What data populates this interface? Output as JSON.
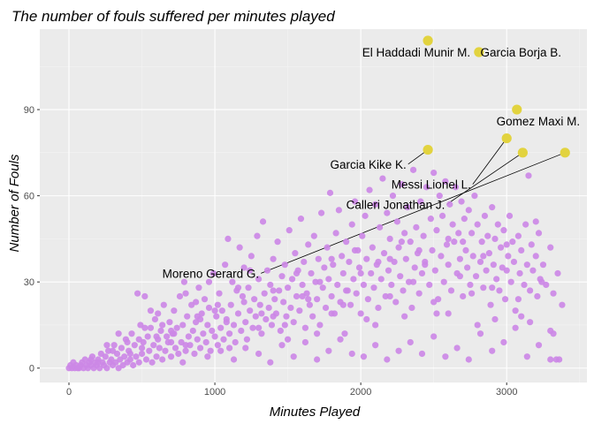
{
  "colors": {
    "panel": "#ebebeb",
    "grid_major": "#ffffff",
    "grid_minor": "#f4f4f4",
    "others": "#cc88e6",
    "highlighted": "#e2d33f",
    "leader": "#000000"
  },
  "chart_data": {
    "type": "scatter",
    "title": "The number of fouls suffered per minutes played",
    "xlabel": "Minutes Played",
    "ylabel": "Number of Fouls",
    "xlim": [
      -200,
      3550
    ],
    "ylim": [
      -5,
      118
    ],
    "xticks": [
      0,
      1000,
      2000,
      3000
    ],
    "yticks": [
      0,
      30,
      60,
      90
    ],
    "grid": true,
    "highlighted": [
      {
        "name": "El Haddadi Munir M.",
        "x": 2460,
        "y": 114,
        "label_x": 2010,
        "label_y": 110,
        "anchor": "start"
      },
      {
        "name": "Garcia Borja  B.",
        "x": 2810,
        "y": 110,
        "label_x": 2820,
        "label_y": 110,
        "anchor": "start"
      },
      {
        "name": "Gomez Maxi M.",
        "x": 3070,
        "y": 90,
        "label_x": 2930,
        "label_y": 86,
        "anchor": "start"
      },
      {
        "name": "Garcia Kike  K.",
        "x": 2460,
        "y": 76,
        "label_x": 1790,
        "label_y": 71,
        "anchor": "start",
        "leader": true
      },
      {
        "name": "Messi Lionel  L.",
        "x": 3000,
        "y": 80,
        "label_x": 2210,
        "label_y": 64,
        "anchor": "start",
        "leader": true
      },
      {
        "name": "Calleri Jonathan  J.",
        "x": 3110,
        "y": 75,
        "label_x": 1900,
        "label_y": 57,
        "anchor": "start",
        "leader": true
      },
      {
        "name": "Moreno Gerard  G.",
        "x": 3400,
        "y": 75,
        "label_x": 640,
        "label_y": 33,
        "anchor": "start",
        "leader": true
      }
    ],
    "points": [
      [
        0,
        0
      ],
      [
        10,
        1
      ],
      [
        20,
        0
      ],
      [
        30,
        2
      ],
      [
        40,
        0
      ],
      [
        50,
        1
      ],
      [
        60,
        0
      ],
      [
        70,
        0
      ],
      [
        80,
        1
      ],
      [
        90,
        2
      ],
      [
        100,
        0
      ],
      [
        110,
        3
      ],
      [
        120,
        1
      ],
      [
        130,
        0
      ],
      [
        140,
        2
      ],
      [
        150,
        1
      ],
      [
        160,
        4
      ],
      [
        170,
        0
      ],
      [
        180,
        2
      ],
      [
        190,
        1
      ],
      [
        200,
        3
      ],
      [
        210,
        0
      ],
      [
        220,
        5
      ],
      [
        230,
        2
      ],
      [
        240,
        1
      ],
      [
        250,
        4
      ],
      [
        260,
        0
      ],
      [
        270,
        6
      ],
      [
        280,
        2
      ],
      [
        290,
        3
      ],
      [
        300,
        1
      ],
      [
        310,
        8
      ],
      [
        320,
        2
      ],
      [
        330,
        5
      ],
      [
        340,
        0
      ],
      [
        350,
        3
      ],
      [
        360,
        7
      ],
      [
        370,
        1
      ],
      [
        380,
        4
      ],
      [
        390,
        10
      ],
      [
        400,
        2
      ],
      [
        410,
        6
      ],
      [
        420,
        3
      ],
      [
        430,
        12
      ],
      [
        440,
        1
      ],
      [
        450,
        8
      ],
      [
        460,
        4
      ],
      [
        470,
        26
      ],
      [
        480,
        2
      ],
      [
        490,
        15
      ],
      [
        500,
        5
      ],
      [
        510,
        9
      ],
      [
        520,
        25
      ],
      [
        530,
        3
      ],
      [
        540,
        11
      ],
      [
        550,
        6
      ],
      [
        560,
        14
      ],
      [
        570,
        2
      ],
      [
        580,
        8
      ],
      [
        590,
        17
      ],
      [
        600,
        4
      ],
      [
        610,
        10
      ],
      [
        620,
        7
      ],
      [
        630,
        13
      ],
      [
        640,
        3
      ],
      [
        650,
        22
      ],
      [
        660,
        6
      ],
      [
        670,
        11
      ],
      [
        680,
        9
      ],
      [
        690,
        16
      ],
      [
        700,
        4
      ],
      [
        710,
        12
      ],
      [
        720,
        20
      ],
      [
        730,
        7
      ],
      [
        740,
        14
      ],
      [
        750,
        5
      ],
      [
        760,
        25
      ],
      [
        770,
        9
      ],
      [
        780,
        15
      ],
      [
        790,
        30
      ],
      [
        800,
        6
      ],
      [
        810,
        18
      ],
      [
        820,
        11
      ],
      [
        830,
        8
      ],
      [
        840,
        22
      ],
      [
        850,
        13
      ],
      [
        860,
        5
      ],
      [
        870,
        16
      ],
      [
        880,
        10
      ],
      [
        890,
        28
      ],
      [
        900,
        7
      ],
      [
        910,
        19
      ],
      [
        920,
        12
      ],
      [
        930,
        24
      ],
      [
        940,
        9
      ],
      [
        950,
        15
      ],
      [
        960,
        21
      ],
      [
        970,
        6
      ],
      [
        980,
        13
      ],
      [
        990,
        33
      ],
      [
        1000,
        11
      ],
      [
        1010,
        18
      ],
      [
        1020,
        8
      ],
      [
        1030,
        26
      ],
      [
        1040,
        14
      ],
      [
        1050,
        20
      ],
      [
        1060,
        10
      ],
      [
        1070,
        36
      ],
      [
        1080,
        17
      ],
      [
        1090,
        45
      ],
      [
        1100,
        12
      ],
      [
        1110,
        22
      ],
      [
        1120,
        30
      ],
      [
        1130,
        15
      ],
      [
        1140,
        9
      ],
      [
        1150,
        27
      ],
      [
        1160,
        19
      ],
      [
        1170,
        42
      ],
      [
        1180,
        13
      ],
      [
        1190,
        25
      ],
      [
        1200,
        35
      ],
      [
        1210,
        16
      ],
      [
        1220,
        10
      ],
      [
        1230,
        28
      ],
      [
        1240,
        20
      ],
      [
        1250,
        39
      ],
      [
        1260,
        14
      ],
      [
        1270,
        24
      ],
      [
        1280,
        18
      ],
      [
        1290,
        46
      ],
      [
        1300,
        31
      ],
      [
        1310,
        22
      ],
      [
        1320,
        12
      ],
      [
        1330,
        51
      ],
      [
        1340,
        26
      ],
      [
        1350,
        17
      ],
      [
        1360,
        34
      ],
      [
        1370,
        21
      ],
      [
        1380,
        29
      ],
      [
        1390,
        15
      ],
      [
        1400,
        38
      ],
      [
        1410,
        24
      ],
      [
        1420,
        19
      ],
      [
        1430,
        44
      ],
      [
        1440,
        27
      ],
      [
        1450,
        13
      ],
      [
        1460,
        32
      ],
      [
        1470,
        23
      ],
      [
        1480,
        36
      ],
      [
        1490,
        18
      ],
      [
        1500,
        28
      ],
      [
        1510,
        48
      ],
      [
        1520,
        21
      ],
      [
        1530,
        31
      ],
      [
        1540,
        16
      ],
      [
        1550,
        40
      ],
      [
        1560,
        25
      ],
      [
        1570,
        34
      ],
      [
        1580,
        20
      ],
      [
        1590,
        52
      ],
      [
        1600,
        29
      ],
      [
        1610,
        37
      ],
      [
        1620,
        14
      ],
      [
        1630,
        26
      ],
      [
        1640,
        43
      ],
      [
        1650,
        22
      ],
      [
        1660,
        33
      ],
      [
        1670,
        18
      ],
      [
        1680,
        46
      ],
      [
        1690,
        30
      ],
      [
        1700,
        24
      ],
      [
        1710,
        38
      ],
      [
        1720,
        15
      ],
      [
        1730,
        54
      ],
      [
        1740,
        28
      ],
      [
        1750,
        35
      ],
      [
        1760,
        21
      ],
      [
        1770,
        42
      ],
      [
        1780,
        31
      ],
      [
        1790,
        61
      ],
      [
        1800,
        25
      ],
      [
        1810,
        36
      ],
      [
        1820,
        19
      ],
      [
        1830,
        47
      ],
      [
        1840,
        29
      ],
      [
        1850,
        55
      ],
      [
        1860,
        23
      ],
      [
        1870,
        39
      ],
      [
        1880,
        33
      ],
      [
        1890,
        12
      ],
      [
        1900,
        44
      ],
      [
        1910,
        27
      ],
      [
        1920,
        37
      ],
      [
        1930,
        22
      ],
      [
        1940,
        50
      ],
      [
        1950,
        31
      ],
      [
        1960,
        58
      ],
      [
        1970,
        26
      ],
      [
        1980,
        41
      ],
      [
        1990,
        35
      ],
      [
        2000,
        19
      ],
      [
        2010,
        46
      ],
      [
        2020,
        29
      ],
      [
        2030,
        53
      ],
      [
        2040,
        38
      ],
      [
        2050,
        24
      ],
      [
        2060,
        62
      ],
      [
        2070,
        33
      ],
      [
        2080,
        42
      ],
      [
        2090,
        28
      ],
      [
        2100,
        57
      ],
      [
        2110,
        36
      ],
      [
        2120,
        21
      ],
      [
        2130,
        49
      ],
      [
        2140,
        31
      ],
      [
        2150,
        66
      ],
      [
        2160,
        40
      ],
      [
        2170,
        25
      ],
      [
        2180,
        54
      ],
      [
        2190,
        34
      ],
      [
        2200,
        45
      ],
      [
        2210,
        29
      ],
      [
        2220,
        60
      ],
      [
        2230,
        37
      ],
      [
        2240,
        23
      ],
      [
        2250,
        51
      ],
      [
        2260,
        42
      ],
      [
        2270,
        32
      ],
      [
        2280,
        64
      ],
      [
        2290,
        27
      ],
      [
        2300,
        47
      ],
      [
        2310,
        38
      ],
      [
        2320,
        56
      ],
      [
        2330,
        30
      ],
      [
        2340,
        44
      ],
      [
        2350,
        21
      ],
      [
        2360,
        69
      ],
      [
        2370,
        35
      ],
      [
        2380,
        49
      ],
      [
        2390,
        40
      ],
      [
        2400,
        26
      ],
      [
        2410,
        58
      ],
      [
        2420,
        33
      ],
      [
        2430,
        46
      ],
      [
        2440,
        37
      ],
      [
        2450,
        63
      ],
      [
        2470,
        29
      ],
      [
        2480,
        52
      ],
      [
        2490,
        41
      ],
      [
        2500,
        68
      ],
      [
        2510,
        34
      ],
      [
        2520,
        48
      ],
      [
        2530,
        24
      ],
      [
        2540,
        60
      ],
      [
        2550,
        39
      ],
      [
        2560,
        53
      ],
      [
        2570,
        30
      ],
      [
        2580,
        65
      ],
      [
        2590,
        43
      ],
      [
        2600,
        36
      ],
      [
        2610,
        57
      ],
      [
        2620,
        27
      ],
      [
        2630,
        50
      ],
      [
        2640,
        44
      ],
      [
        2650,
        63
      ],
      [
        2660,
        33
      ],
      [
        2670,
        47
      ],
      [
        2680,
        38
      ],
      [
        2690,
        58
      ],
      [
        2700,
        25
      ],
      [
        2710,
        52
      ],
      [
        2720,
        41
      ],
      [
        2730,
        35
      ],
      [
        2740,
        55
      ],
      [
        2750,
        29
      ],
      [
        2760,
        47
      ],
      [
        2770,
        39
      ],
      [
        2780,
        60
      ],
      [
        2790,
        32
      ],
      [
        2800,
        50
      ],
      [
        2820,
        37
      ],
      [
        2830,
        44
      ],
      [
        2840,
        28
      ],
      [
        2850,
        53
      ],
      [
        2860,
        34
      ],
      [
        2870,
        46
      ],
      [
        2880,
        40
      ],
      [
        2890,
        22
      ],
      [
        2900,
        56
      ],
      [
        2910,
        36
      ],
      [
        2920,
        45
      ],
      [
        2930,
        31
      ],
      [
        2940,
        50
      ],
      [
        2950,
        27
      ],
      [
        2960,
        42
      ],
      [
        2970,
        35
      ],
      [
        2980,
        48
      ],
      [
        2990,
        24
      ],
      [
        3010,
        39
      ],
      [
        3020,
        53
      ],
      [
        3030,
        30
      ],
      [
        3040,
        44
      ],
      [
        3050,
        37
      ],
      [
        3060,
        20
      ],
      [
        3080,
        46
      ],
      [
        3090,
        33
      ],
      [
        3100,
        41
      ],
      [
        3120,
        29
      ],
      [
        3130,
        50
      ],
      [
        3140,
        36
      ],
      [
        3150,
        67
      ],
      [
        3160,
        27
      ],
      [
        3170,
        43
      ],
      [
        3180,
        34
      ],
      [
        3200,
        39
      ],
      [
        3210,
        25
      ],
      [
        3220,
        47
      ],
      [
        3230,
        31
      ],
      [
        3250,
        36
      ],
      [
        3270,
        29
      ],
      [
        3300,
        42
      ],
      [
        3320,
        26
      ],
      [
        3350,
        33
      ],
      [
        3380,
        22
      ],
      [
        150,
        3
      ],
      [
        260,
        8
      ],
      [
        340,
        12
      ],
      [
        420,
        5
      ],
      [
        520,
        14
      ],
      [
        610,
        19
      ],
      [
        700,
        9
      ],
      [
        780,
        2
      ],
      [
        870,
        23
      ],
      [
        950,
        4
      ],
      [
        1040,
        6
      ],
      [
        1130,
        3
      ],
      [
        1210,
        7
      ],
      [
        1300,
        5
      ],
      [
        1380,
        2
      ],
      [
        1460,
        8
      ],
      [
        1540,
        4
      ],
      [
        1620,
        9
      ],
      [
        1700,
        3
      ],
      [
        1780,
        6
      ],
      [
        1860,
        10
      ],
      [
        1940,
        5
      ],
      [
        2020,
        4
      ],
      [
        2100,
        8
      ],
      [
        2180,
        3
      ],
      [
        2260,
        6
      ],
      [
        2340,
        9
      ],
      [
        2420,
        5
      ],
      [
        2500,
        11
      ],
      [
        2580,
        4
      ],
      [
        2660,
        7
      ],
      [
        2740,
        3
      ],
      [
        2820,
        12
      ],
      [
        2900,
        6
      ],
      [
        2980,
        9
      ],
      [
        3060,
        14
      ],
      [
        3140,
        4
      ],
      [
        3220,
        8
      ],
      [
        3300,
        3
      ],
      [
        3340,
        3
      ],
      [
        3360,
        3
      ],
      [
        480,
        10
      ],
      [
        560,
        20
      ],
      [
        640,
        15
      ],
      [
        720,
        12
      ],
      [
        800,
        26
      ],
      [
        880,
        18
      ],
      [
        960,
        30
      ],
      [
        1020,
        22
      ],
      [
        1080,
        16
      ],
      [
        1160,
        28
      ],
      [
        1240,
        34
      ],
      [
        1320,
        19
      ],
      [
        1400,
        27
      ],
      [
        1480,
        15
      ],
      [
        1560,
        33
      ],
      [
        1640,
        24
      ],
      [
        1720,
        30
      ],
      [
        1800,
        38
      ],
      [
        1880,
        22
      ],
      [
        1960,
        41
      ],
      [
        2040,
        17
      ],
      [
        2120,
        37
      ],
      [
        2200,
        25
      ],
      [
        2280,
        44
      ],
      [
        2360,
        30
      ],
      [
        2440,
        36
      ],
      [
        2520,
        19
      ],
      [
        2600,
        45
      ],
      [
        2680,
        32
      ],
      [
        2760,
        26
      ],
      [
        2840,
        39
      ],
      [
        2920,
        17
      ],
      [
        3000,
        34
      ],
      [
        3080,
        24
      ],
      [
        3160,
        16
      ],
      [
        3240,
        30
      ],
      [
        3320,
        12
      ],
      [
        200,
        2
      ],
      [
        300,
        6
      ],
      [
        400,
        9
      ],
      [
        500,
        7
      ],
      [
        600,
        11
      ],
      [
        700,
        13
      ],
      [
        800,
        8
      ],
      [
        900,
        17
      ],
      [
        1000,
        20
      ],
      [
        1100,
        7
      ],
      [
        1200,
        23
      ],
      [
        1300,
        14
      ],
      [
        1400,
        18
      ],
      [
        1500,
        10
      ],
      [
        1600,
        25
      ],
      [
        1700,
        12
      ],
      [
        1800,
        19
      ],
      [
        1900,
        27
      ],
      [
        2000,
        33
      ],
      [
        2100,
        15
      ],
      [
        2200,
        38
      ],
      [
        2300,
        18
      ],
      [
        2400,
        41
      ],
      [
        2500,
        23
      ],
      [
        2600,
        19
      ],
      [
        2700,
        44
      ],
      [
        2800,
        15
      ],
      [
        2900,
        28
      ],
      [
        3000,
        43
      ],
      [
        3100,
        18
      ],
      [
        3200,
        51
      ],
      [
        3300,
        13
      ]
    ]
  }
}
